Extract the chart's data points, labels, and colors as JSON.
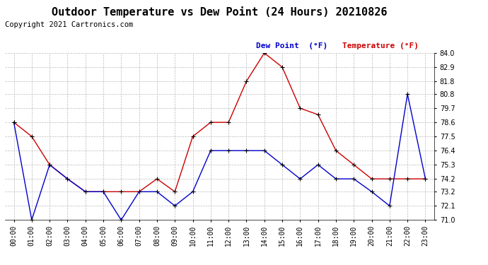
{
  "title": "Outdoor Temperature vs Dew Point (24 Hours) 20210826",
  "copyright": "Copyright 2021 Cartronics.com",
  "legend_dew": "Dew Point  (°F)",
  "legend_temp": "Temperature (°F)",
  "hours": [
    "00:00",
    "01:00",
    "02:00",
    "03:00",
    "04:00",
    "05:00",
    "06:00",
    "07:00",
    "08:00",
    "09:00",
    "10:00",
    "11:00",
    "12:00",
    "13:00",
    "14:00",
    "15:00",
    "16:00",
    "17:00",
    "18:00",
    "19:00",
    "20:00",
    "21:00",
    "22:00",
    "23:00"
  ],
  "temperature": [
    78.6,
    77.5,
    75.3,
    74.2,
    73.2,
    73.2,
    73.2,
    73.2,
    74.2,
    73.2,
    77.5,
    78.6,
    78.6,
    81.8,
    84.0,
    82.9,
    79.7,
    79.2,
    76.4,
    75.3,
    74.2,
    74.2,
    74.2,
    74.2
  ],
  "dew_point": [
    78.6,
    71.0,
    75.3,
    74.2,
    73.2,
    73.2,
    71.0,
    73.2,
    73.2,
    72.1,
    73.2,
    76.4,
    76.4,
    76.4,
    76.4,
    75.3,
    74.2,
    75.3,
    74.2,
    74.2,
    73.2,
    72.1,
    80.8,
    74.2
  ],
  "ylim": [
    71.0,
    84.0
  ],
  "yticks": [
    71.0,
    72.1,
    73.2,
    74.2,
    75.3,
    76.4,
    77.5,
    78.6,
    79.7,
    80.8,
    81.8,
    82.9,
    84.0
  ],
  "temp_color": "#cc0000",
  "dew_color": "#0000cc",
  "background_color": "#ffffff",
  "grid_color": "#bbbbbb",
  "title_fontsize": 11,
  "copyright_fontsize": 7.5,
  "legend_fontsize": 8,
  "tick_fontsize": 7,
  "ylabel_fontsize": 7
}
